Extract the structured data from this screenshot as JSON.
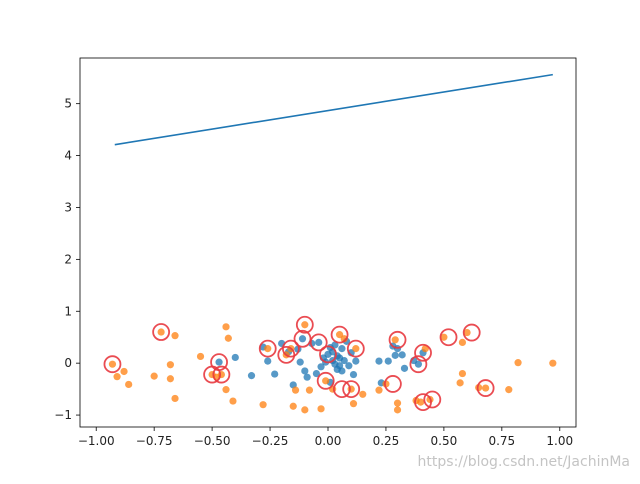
{
  "chart_data": {
    "type": "scatter",
    "title": "",
    "xlabel": "",
    "ylabel": "",
    "xlim": [
      -1.07,
      1.07
    ],
    "ylim": [
      -1.23,
      5.88
    ],
    "xticks": [
      -1.0,
      -0.75,
      -0.5,
      -0.25,
      0.0,
      0.25,
      0.5,
      0.75,
      1.0
    ],
    "xtick_labels": [
      "−1.00",
      "−0.75",
      "−0.50",
      "−0.25",
      "0.00",
      "0.25",
      "0.50",
      "0.75",
      "1.00"
    ],
    "yticks": [
      -1,
      0,
      1,
      2,
      3,
      4,
      5
    ],
    "ytick_labels": [
      "−1",
      "0",
      "1",
      "2",
      "3",
      "4",
      "5"
    ],
    "grid": false,
    "line_series": {
      "color": "#1f77b4",
      "x": [
        -0.92,
        0.97
      ],
      "y": [
        4.21,
        5.56
      ]
    },
    "blue_points": {
      "color": "#1f77b4",
      "points": [
        [
          -0.47,
          0.02
        ],
        [
          -0.4,
          0.11
        ],
        [
          -0.33,
          -0.24
        ],
        [
          -0.28,
          0.31
        ],
        [
          -0.26,
          0.04
        ],
        [
          -0.23,
          -0.21
        ],
        [
          -0.2,
          0.38
        ],
        [
          -0.17,
          0.22
        ],
        [
          -0.15,
          -0.42
        ],
        [
          -0.13,
          0.27
        ],
        [
          -0.12,
          0.02
        ],
        [
          -0.11,
          0.47
        ],
        [
          -0.1,
          -0.15
        ],
        [
          -0.09,
          -0.27
        ],
        [
          -0.07,
          0.38
        ],
        [
          -0.05,
          -0.2
        ],
        [
          -0.04,
          0.4
        ],
        [
          -0.03,
          -0.07
        ],
        [
          -0.02,
          0.1
        ],
        [
          -0.01,
          0.02
        ],
        [
          0.0,
          0.17
        ],
        [
          0.01,
          -0.37
        ],
        [
          0.01,
          0.3
        ],
        [
          0.02,
          0.05
        ],
        [
          0.02,
          0.22
        ],
        [
          0.03,
          -0.02
        ],
        [
          0.03,
          0.35
        ],
        [
          0.04,
          -0.12
        ],
        [
          0.04,
          0.14
        ],
        [
          0.05,
          -0.05
        ],
        [
          0.05,
          0.1
        ],
        [
          0.06,
          0.28
        ],
        [
          0.06,
          -0.15
        ],
        [
          0.07,
          0.05
        ],
        [
          0.08,
          0.42
        ],
        [
          0.09,
          -0.05
        ],
        [
          0.1,
          0.2
        ],
        [
          0.11,
          -0.22
        ],
        [
          0.12,
          0.04
        ],
        [
          0.22,
          0.04
        ],
        [
          0.23,
          -0.38
        ],
        [
          0.26,
          0.04
        ],
        [
          0.28,
          0.33
        ],
        [
          0.29,
          0.15
        ],
        [
          0.3,
          0.28
        ],
        [
          0.32,
          0.16
        ],
        [
          0.33,
          -0.1
        ],
        [
          0.37,
          0.05
        ],
        [
          0.39,
          -0.02
        ],
        [
          0.41,
          0.2
        ]
      ]
    },
    "orange_points": {
      "color": "#ff7f0e",
      "points": [
        [
          -0.93,
          -0.02
        ],
        [
          -0.91,
          -0.26
        ],
        [
          -0.88,
          -0.16
        ],
        [
          -0.86,
          -0.41
        ],
        [
          -0.75,
          -0.25
        ],
        [
          -0.72,
          0.6
        ],
        [
          -0.68,
          -0.3
        ],
        [
          -0.68,
          -0.03
        ],
        [
          -0.66,
          0.53
        ],
        [
          -0.66,
          -0.68
        ],
        [
          -0.55,
          0.13
        ],
        [
          -0.5,
          -0.22
        ],
        [
          -0.48,
          -0.27
        ],
        [
          -0.46,
          -0.22
        ],
        [
          -0.44,
          0.7
        ],
        [
          -0.44,
          -0.51
        ],
        [
          -0.43,
          0.48
        ],
        [
          -0.41,
          -0.73
        ],
        [
          -0.28,
          -0.8
        ],
        [
          -0.26,
          0.28
        ],
        [
          -0.18,
          0.16
        ],
        [
          -0.16,
          0.28
        ],
        [
          -0.15,
          -0.83
        ],
        [
          -0.14,
          -0.52
        ],
        [
          -0.1,
          0.74
        ],
        [
          -0.1,
          -0.9
        ],
        [
          -0.08,
          -0.52
        ],
        [
          -0.03,
          -0.88
        ],
        [
          -0.01,
          -0.34
        ],
        [
          0.02,
          -0.5
        ],
        [
          0.05,
          0.55
        ],
        [
          0.07,
          0.47
        ],
        [
          0.1,
          -0.5
        ],
        [
          0.11,
          -0.78
        ],
        [
          0.12,
          0.28
        ],
        [
          0.15,
          -0.6
        ],
        [
          0.22,
          -0.52
        ],
        [
          0.25,
          -0.4
        ],
        [
          0.29,
          0.45
        ],
        [
          0.3,
          -0.77
        ],
        [
          0.3,
          -0.9
        ],
        [
          0.38,
          -0.72
        ],
        [
          0.4,
          -0.75
        ],
        [
          0.42,
          0.28
        ],
        [
          0.44,
          -0.7
        ],
        [
          0.5,
          0.5
        ],
        [
          0.57,
          -0.38
        ],
        [
          0.58,
          -0.2
        ],
        [
          0.58,
          0.4
        ],
        [
          0.6,
          0.59
        ],
        [
          0.65,
          -0.47
        ],
        [
          0.68,
          -0.48
        ],
        [
          0.78,
          -0.51
        ],
        [
          0.82,
          0.01
        ],
        [
          0.97,
          0.0
        ]
      ]
    },
    "highlighted_points": {
      "color": "#e8393f",
      "points": [
        [
          -0.93,
          -0.02
        ],
        [
          -0.72,
          0.6
        ],
        [
          -0.5,
          -0.22
        ],
        [
          -0.47,
          0.02
        ],
        [
          -0.46,
          -0.22
        ],
        [
          -0.26,
          0.28
        ],
        [
          -0.18,
          0.16
        ],
        [
          -0.16,
          0.28
        ],
        [
          -0.11,
          0.47
        ],
        [
          -0.1,
          0.74
        ],
        [
          -0.04,
          0.4
        ],
        [
          -0.01,
          -0.34
        ],
        [
          0.0,
          0.17
        ],
        [
          0.05,
          0.55
        ],
        [
          0.06,
          -0.5
        ],
        [
          0.1,
          -0.5
        ],
        [
          0.12,
          0.28
        ],
        [
          0.28,
          -0.4
        ],
        [
          0.3,
          0.45
        ],
        [
          0.39,
          -0.02
        ],
        [
          0.41,
          0.2
        ],
        [
          0.41,
          -0.75
        ],
        [
          0.45,
          -0.7
        ],
        [
          0.52,
          0.5
        ],
        [
          0.62,
          0.59
        ],
        [
          0.68,
          -0.48
        ]
      ]
    }
  },
  "watermark": "https://blog.csdn.net/JachinMa"
}
